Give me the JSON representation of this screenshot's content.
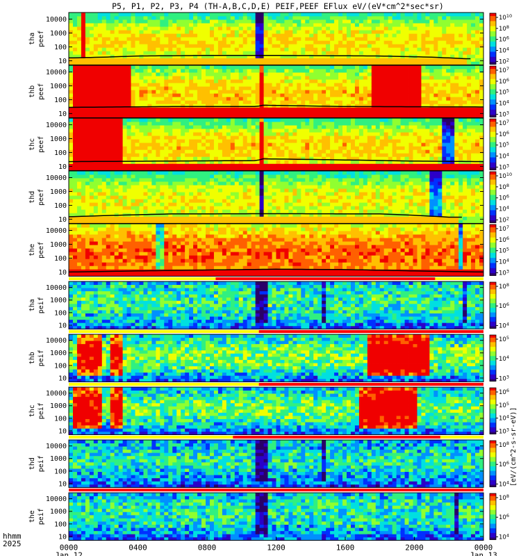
{
  "page": {
    "title": "P5, P1, P2, P3, P4 (TH-A,B,C,D,E) PEIF,PEEF EFlux eV/(eV*cm^2*sec*sr)",
    "time_row_label": "hhmm",
    "year_label": "2025",
    "colorbar_title": "[eV/(cm^2-s-sr-eV)]"
  },
  "colors": {
    "background": "#ffffff",
    "axis": "#000000",
    "flag_yellow": "#ffff00",
    "flag_red": "#ff0000"
  },
  "chart_data": {
    "type": "heatmap",
    "colormap": [
      "#2a0068",
      "#2b00c8",
      "#0030ff",
      "#0090ff",
      "#00e0e0",
      "#30f080",
      "#90ff30",
      "#f0ff00",
      "#ffc000",
      "#ff6000",
      "#f00000"
    ],
    "x_axis": {
      "range_hours": [
        0,
        24
      ],
      "ticks": [
        {
          "hour": 0,
          "label": "0000",
          "date": "Jan 12"
        },
        {
          "hour": 4,
          "label": "0400",
          "date": ""
        },
        {
          "hour": 8,
          "label": "0800",
          "date": ""
        },
        {
          "hour": 12,
          "label": "1200",
          "date": ""
        },
        {
          "hour": 16,
          "label": "1600",
          "date": ""
        },
        {
          "hour": 20,
          "label": "2000",
          "date": ""
        },
        {
          "hour": 24,
          "label": "0000",
          "date": "Jan 13"
        }
      ]
    },
    "y_scale": "log",
    "y_range": [
      5,
      30000
    ],
    "y_ticks": [
      10,
      100,
      1000,
      10000
    ],
    "y_tick_labels": [
      "10",
      "100",
      "1000",
      "10000"
    ],
    "panels": [
      {
        "probe": "tha",
        "kind": "peef",
        "label": [
          "tha",
          "peef"
        ],
        "base": 0.55,
        "amp": 0.25,
        "bands": [
          [
            0.8,
            1.05,
            0.6
          ],
          [
            4.2,
            4.35,
            0.7
          ],
          [
            10.9,
            11.2,
            -0.6
          ],
          [
            15.3,
            15.45,
            0.5
          ]
        ],
        "low_band": {
          "end_hour": 23.0,
          "top": 15,
          "level": 0.8
        },
        "line": [
          [
            0,
            16
          ],
          [
            2,
            18
          ],
          [
            4,
            22
          ],
          [
            8,
            24
          ],
          [
            12,
            24
          ],
          [
            18,
            22
          ],
          [
            21,
            18
          ],
          [
            23,
            14
          ]
        ],
        "cb_ticks": [
          "10^10",
          "10^8",
          "10^6",
          "10^4",
          "10^2"
        ],
        "cb_range": [
          1,
          10
        ]
      },
      {
        "probe": "thb",
        "kind": "peef",
        "label": [
          "thb",
          "peef"
        ],
        "base": 0.62,
        "amp": 0.22,
        "bands": [
          [
            0.3,
            3.5,
            0.9
          ],
          [
            11.0,
            11.2,
            0.4
          ],
          [
            17.5,
            20.5,
            0.85
          ]
        ],
        "low_band": {
          "end_hour": 24,
          "top": 25,
          "level": 1.0
        },
        "line": [
          [
            0,
            28
          ],
          [
            6,
            32
          ],
          [
            10.9,
            32
          ],
          [
            11.2,
            40
          ],
          [
            16,
            32
          ],
          [
            24,
            30
          ]
        ],
        "cb_ticks": [
          "10^7",
          "10^6",
          "10^5",
          "10^4",
          "10^3"
        ],
        "cb_range": [
          3,
          7
        ]
      },
      {
        "probe": "thc",
        "kind": "peef",
        "label": [
          "thc",
          "peef"
        ],
        "base": 0.58,
        "amp": 0.25,
        "bands": [
          [
            0.3,
            3.0,
            0.85
          ],
          [
            11.0,
            11.2,
            0.4
          ],
          [
            21.5,
            22.3,
            -0.5
          ]
        ],
        "low_band": {
          "end_hour": 24,
          "top": 20,
          "level": 1.0
        },
        "line": [
          [
            0,
            22
          ],
          [
            8,
            25
          ],
          [
            10.9,
            26
          ],
          [
            11.2,
            35
          ],
          [
            20,
            24
          ],
          [
            24,
            22
          ]
        ],
        "cb_ticks": [
          "10^7",
          "10^6",
          "10^5",
          "10^4",
          "10^3"
        ],
        "cb_range": [
          3,
          7
        ]
      },
      {
        "probe": "thd",
        "kind": "peef",
        "label": [
          "thd",
          "peef"
        ],
        "base": 0.55,
        "amp": 0.22,
        "bands": [
          [
            11.0,
            11.2,
            -0.6
          ],
          [
            20.8,
            21.6,
            -0.4
          ]
        ],
        "low_band": {
          "end_hour": 22.5,
          "top": 15,
          "level": 0.8
        },
        "line": [
          [
            0,
            15
          ],
          [
            2,
            18
          ],
          [
            6,
            24
          ],
          [
            12,
            25
          ],
          [
            18,
            24
          ],
          [
            22,
            14
          ]
        ],
        "cb_ticks": [
          "10^10",
          "10^8",
          "10^6",
          "10^4",
          "10^2"
        ],
        "cb_range": [
          1,
          10
        ]
      },
      {
        "probe": "the",
        "kind": "peef",
        "label": [
          "the",
          "peef"
        ],
        "base": 0.78,
        "amp": 0.18,
        "bands": [
          [
            5.0,
            5.5,
            -0.35
          ],
          [
            22.6,
            22.9,
            -0.5
          ]
        ],
        "low_band": {
          "end_hour": 24,
          "top": 12,
          "level": 1.0
        },
        "line": [
          [
            0,
            10
          ],
          [
            4,
            12
          ],
          [
            8,
            14
          ],
          [
            12,
            16
          ],
          [
            16,
            15
          ],
          [
            20,
            12
          ],
          [
            24,
            10
          ]
        ],
        "cb_ticks": [
          "10^7",
          "10^6",
          "10^5",
          "10^4",
          "10^3"
        ],
        "cb_range": [
          3,
          7
        ]
      },
      {
        "probe": "tha",
        "kind": "peif",
        "label": [
          "tha",
          "peif"
        ],
        "base": 0.38,
        "amp": 0.18,
        "bands": [
          [
            10.9,
            11.5,
            -0.4
          ],
          [
            14.7,
            14.85,
            -0.35
          ],
          [
            22.9,
            23.1,
            -0.35
          ]
        ],
        "flag": {
          "yellow": [
            0,
            24
          ],
          "red": [
            8.5,
            21.2
          ]
        },
        "cb_ticks": [
          "10^8",
          "10^6",
          "10^4"
        ],
        "cb_range": [
          3,
          8
        ]
      },
      {
        "probe": "thb",
        "kind": "peif",
        "label": [
          "thb",
          "peif"
        ],
        "base": 0.35,
        "amp": 0.3,
        "bands": [
          [
            0.5,
            2.0,
            0.5
          ],
          [
            2.5,
            3.2,
            0.5
          ],
          [
            17.2,
            20.8,
            0.6
          ]
        ],
        "flag": {
          "yellow": [
            0,
            11.0
          ],
          "red": [
            11.0,
            24
          ]
        },
        "cb_ticks": [
          "10^5",
          "10^4",
          "10^3"
        ],
        "cb_range": [
          2,
          6
        ]
      },
      {
        "probe": "thc",
        "kind": "peif",
        "label": [
          "thc",
          "peif"
        ],
        "base": 0.33,
        "amp": 0.3,
        "bands": [
          [
            0.3,
            1.8,
            0.55
          ],
          [
            2.5,
            3.0,
            0.5
          ],
          [
            16.8,
            20.2,
            0.6
          ]
        ],
        "flag": {
          "yellow": [
            0,
            11.0
          ],
          "red": [
            11.0,
            24
          ]
        },
        "cb_ticks": [
          "10^6",
          "10^5",
          "10^4",
          "10^3"
        ],
        "cb_range": [
          2,
          7
        ]
      },
      {
        "probe": "thd",
        "kind": "peif",
        "label": [
          "thd",
          "peif"
        ],
        "base": 0.32,
        "amp": 0.2,
        "bands": [
          [
            10.9,
            11.5,
            -0.4
          ],
          [
            14.7,
            14.85,
            -0.35
          ]
        ],
        "flag": {
          "yellow": [
            0,
            24
          ],
          "red": [
            9.5,
            21.5
          ]
        },
        "cb_ticks": [
          "10^8",
          "10^6",
          "10^4"
        ],
        "cb_range": [
          3,
          8
        ]
      },
      {
        "probe": "the",
        "kind": "peif",
        "label": [
          "the",
          "peif"
        ],
        "base": 0.36,
        "amp": 0.18,
        "bands": [
          [
            10.9,
            11.5,
            -0.4
          ],
          [
            22.4,
            22.6,
            -0.4
          ]
        ],
        "flag": {
          "yellow": [
            0,
            0
          ],
          "red": [
            0,
            24
          ]
        },
        "cb_ticks": [
          "10^8",
          "10^6",
          "10^4"
        ],
        "cb_range": [
          3,
          8
        ]
      }
    ]
  }
}
